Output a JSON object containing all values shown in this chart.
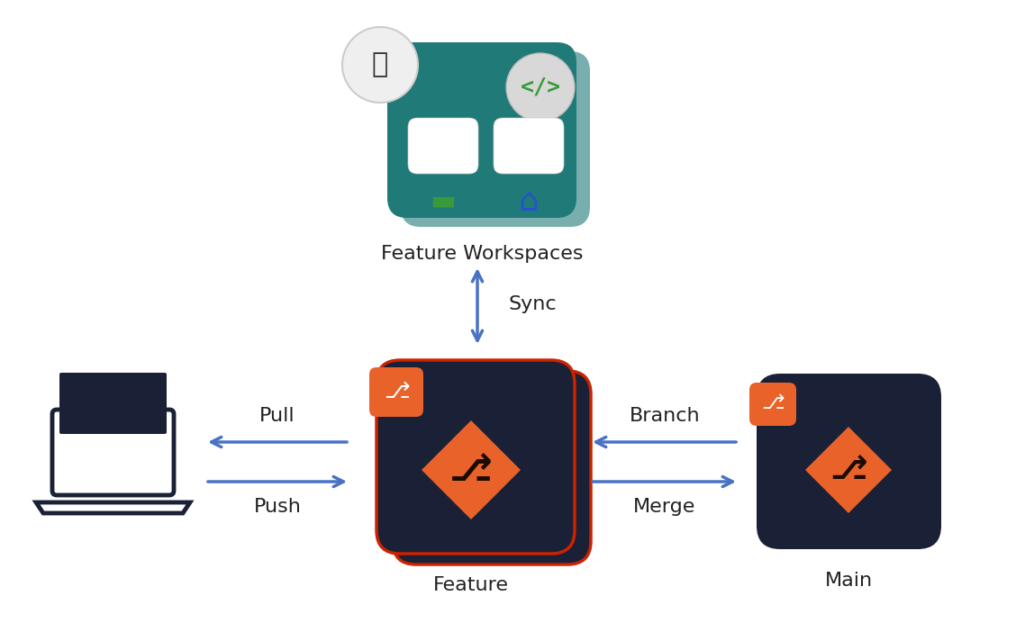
{
  "bg_color": "#ffffff",
  "teal_color": "#1f7a78",
  "dark_navy": "#1a2035",
  "orange_color": "#e8622a",
  "red_outline": "#cc2200",
  "blue_arrow": "#4a72c4",
  "gray_circle_bg": "#e8e8e8",
  "white": "#ffffff",
  "green_icon": "#3a9a3a",
  "blue_icon": "#2255cc",
  "text_color": "#222222",
  "label_fontsize": 16,
  "title_fontsize": 18,
  "feature_workspaces_label": "Feature Workspaces",
  "feature_label": "Feature",
  "main_label": "Main",
  "sync_label": "Sync",
  "pull_label": "Pull",
  "push_label": "Push",
  "branch_label": "Branch",
  "merge_label": "Merge"
}
